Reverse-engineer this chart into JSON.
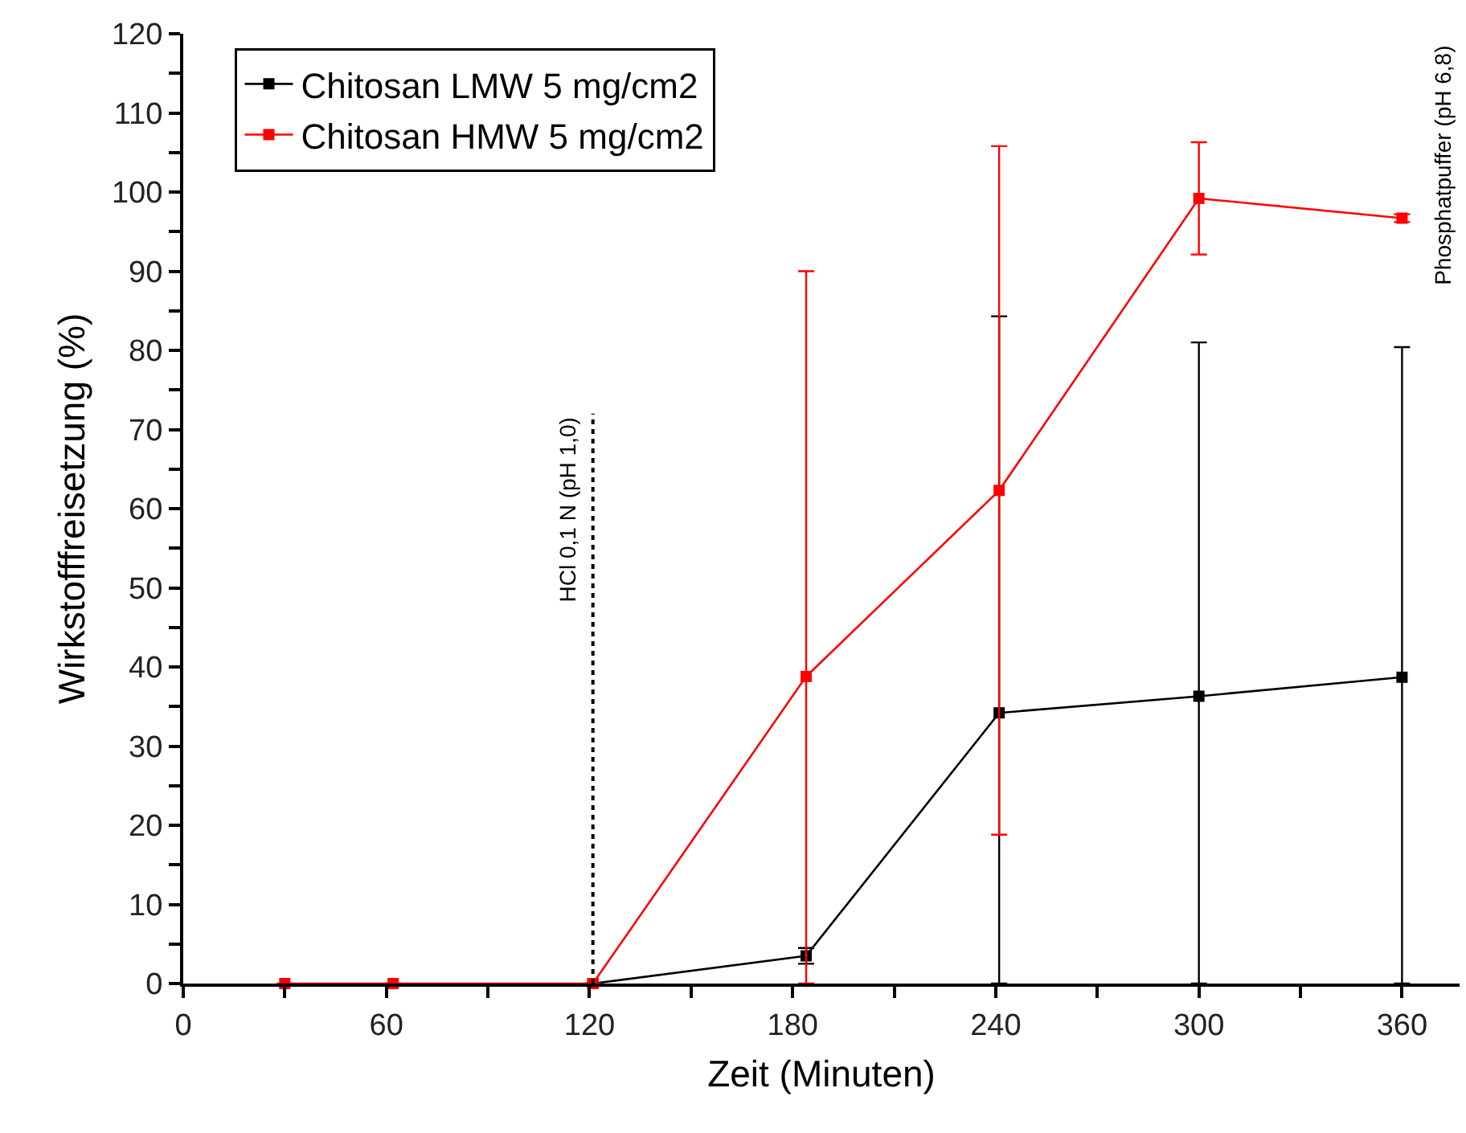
{
  "chart_data": {
    "type": "line",
    "xlabel": "Zeit (Minuten)",
    "ylabel": "Wirkstofffreisetzung (%)",
    "x": [
      30,
      62,
      121,
      184,
      241,
      300,
      360
    ],
    "series": [
      {
        "name": "Chitosan LMW 5 mg/cm2",
        "color": "#000000",
        "values": [
          null,
          null,
          0,
          3.5,
          34.2,
          36.3,
          38.7
        ],
        "errors": [
          null,
          null,
          null,
          1,
          [
            0,
            84.3
          ],
          [
            0,
            81
          ],
          [
            0,
            80.4
          ]
        ]
      },
      {
        "name": "Chitosan HMW 5 mg/cm2",
        "color": "#ff0000",
        "values": [
          0,
          0,
          0,
          38.8,
          62.3,
          99.2,
          96.7
        ],
        "errors": [
          null,
          null,
          null,
          [
            0,
            90
          ],
          43.5,
          7.1,
          0.5
        ]
      }
    ],
    "xlim": [
      0,
      377
    ],
    "xticks": [
      0,
      {
        "value": 30,
        "label": null
      },
      60,
      {
        "value": 90,
        "label": null
      },
      120,
      {
        "value": 150,
        "label": null
      },
      180,
      {
        "value": 210,
        "label": null
      },
      240,
      {
        "value": 270,
        "label": null
      },
      300,
      {
        "value": 330,
        "label": null
      },
      360
    ],
    "ylim": [
      0,
      120
    ],
    "yticks": [
      0,
      {
        "value": 5,
        "label": null
      },
      10,
      {
        "value": 15,
        "label": null
      },
      20,
      {
        "value": 25,
        "label": null
      },
      30,
      {
        "value": 35,
        "label": null
      },
      40,
      {
        "value": 45,
        "label": null
      },
      50,
      {
        "value": 55,
        "label": null
      },
      60,
      {
        "value": 65,
        "label": null
      },
      70,
      {
        "value": 75,
        "label": null
      },
      80,
      {
        "value": 85,
        "label": null
      },
      90,
      {
        "value": 95,
        "label": null
      },
      100,
      {
        "value": 105,
        "label": null
      },
      110,
      {
        "value": 115,
        "label": null
      },
      120
    ],
    "ref_lines": [
      {
        "axis": "x",
        "value": 121,
        "label": "HCl 0,1 N (pH 1,0)",
        "color": "#000000",
        "line_style": "dotted"
      }
    ],
    "annotations": [
      "Phosphatpuffer (pH 6,8)"
    ],
    "marker": "square",
    "line_style": "solid",
    "grid": false,
    "legend": "top left"
  }
}
